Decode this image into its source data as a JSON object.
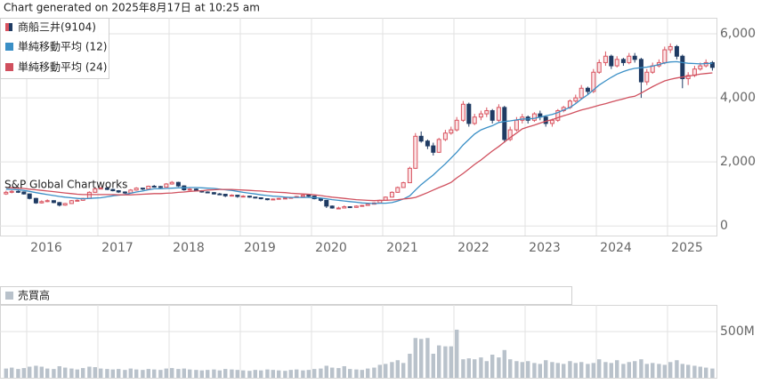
{
  "header": "Chart generated on 2025年8月17日 at 10:25 am",
  "watermark": "S&P Global Chartworks",
  "chart_data": [
    {
      "type": "candlestick",
      "name": "商船三井(9104)",
      "up_color": "#d9535f",
      "up_fill": "#fbe3e5",
      "down_color": "#1f3b63",
      "xlim": [
        2015.625,
        2025.6875
      ],
      "xticks": [
        2016,
        2017,
        2018,
        2019,
        2020,
        2021,
        2022,
        2023,
        2024,
        2025
      ],
      "ylim": [
        -300,
        6500
      ],
      "yticks": [
        0,
        {
          "value": 2000,
          "label": "2,000"
        },
        {
          "value": 4000,
          "label": "4,000"
        },
        {
          "value": 6000,
          "label": "6,000"
        }
      ],
      "grid": true,
      "x": [
        2015.71,
        2015.79,
        2015.88,
        2015.96,
        2016.04,
        2016.13,
        2016.21,
        2016.29,
        2016.38,
        2016.46,
        2016.54,
        2016.63,
        2016.71,
        2016.79,
        2016.88,
        2016.96,
        2017.04,
        2017.13,
        2017.21,
        2017.29,
        2017.38,
        2017.46,
        2017.54,
        2017.63,
        2017.71,
        2017.79,
        2017.88,
        2017.96,
        2018.04,
        2018.13,
        2018.21,
        2018.29,
        2018.38,
        2018.46,
        2018.54,
        2018.63,
        2018.71,
        2018.79,
        2018.88,
        2018.96,
        2019.04,
        2019.13,
        2019.21,
        2019.29,
        2019.38,
        2019.46,
        2019.54,
        2019.63,
        2019.71,
        2019.79,
        2019.88,
        2019.96,
        2020.04,
        2020.13,
        2020.21,
        2020.29,
        2020.38,
        2020.46,
        2020.54,
        2020.63,
        2020.71,
        2020.79,
        2020.88,
        2020.96,
        2021.04,
        2021.13,
        2021.21,
        2021.29,
        2021.38,
        2021.46,
        2021.54,
        2021.63,
        2021.71,
        2021.79,
        2021.88,
        2021.96,
        2022.04,
        2022.13,
        2022.21,
        2022.29,
        2022.38,
        2022.46,
        2022.54,
        2022.63,
        2022.71,
        2022.79,
        2022.88,
        2022.96,
        2023.04,
        2023.13,
        2023.21,
        2023.29,
        2023.38,
        2023.46,
        2023.54,
        2023.63,
        2023.71,
        2023.79,
        2023.88,
        2023.96,
        2024.04,
        2024.13,
        2024.21,
        2024.29,
        2024.38,
        2024.46,
        2024.54,
        2024.63,
        2024.71,
        2024.79,
        2024.88,
        2024.96,
        2025.04,
        2025.13,
        2025.21,
        2025.29,
        2025.38,
        2025.46,
        2025.54,
        2025.63
      ],
      "open": [
        1000,
        1050,
        1080,
        1060,
        1000,
        860,
        720,
        760,
        790,
        730,
        650,
        700,
        790,
        800,
        860,
        1050,
        1160,
        1180,
        1140,
        1100,
        1060,
        1030,
        1120,
        1180,
        1150,
        1240,
        1230,
        1210,
        1310,
        1360,
        1250,
        1130,
        1150,
        1100,
        1060,
        1040,
        1000,
        990,
        940,
        960,
        920,
        930,
        900,
        880,
        850,
        820,
        840,
        860,
        870,
        890,
        920,
        960,
        930,
        850,
        800,
        620,
        560,
        560,
        600,
        580,
        620,
        640,
        680,
        720,
        800,
        900,
        1050,
        1200,
        1350,
        1800,
        2800,
        2650,
        2500,
        2300,
        2700,
        2900,
        3000,
        3300,
        3800,
        3200,
        3400,
        3500,
        3600,
        3300,
        3700,
        2700,
        3000,
        3300,
        3400,
        3300,
        3500,
        3400,
        3200,
        3300,
        3600,
        3700,
        3900,
        4000,
        4300,
        4200,
        4800,
        5100,
        5300,
        5000,
        5200,
        5100,
        5300,
        5200,
        4500,
        4800,
        5000,
        5100,
        5500,
        5600,
        5300,
        4600,
        4700,
        4900,
        5000,
        5100
      ],
      "high": [
        1100,
        1120,
        1110,
        1080,
        1010,
        880,
        800,
        830,
        800,
        750,
        720,
        810,
        830,
        880,
        1080,
        1200,
        1220,
        1190,
        1160,
        1120,
        1080,
        1150,
        1210,
        1190,
        1260,
        1280,
        1250,
        1340,
        1400,
        1380,
        1270,
        1180,
        1170,
        1120,
        1080,
        1060,
        1030,
        1000,
        990,
        970,
        960,
        940,
        910,
        890,
        860,
        860,
        880,
        890,
        910,
        940,
        980,
        970,
        940,
        860,
        810,
        640,
        600,
        640,
        610,
        640,
        660,
        700,
        740,
        820,
        920,
        1080,
        1230,
        1380,
        1850,
        2900,
        2950,
        2700,
        2600,
        2750,
        3000,
        3100,
        3400,
        3900,
        3850,
        3500,
        3600,
        3700,
        3650,
        3800,
        3750,
        3100,
        3400,
        3500,
        3450,
        3550,
        3600,
        3450,
        3350,
        3650,
        3750,
        3950,
        4100,
        4400,
        4350,
        4900,
        5200,
        5450,
        5350,
        5300,
        5250,
        5400,
        5400,
        5250,
        4900,
        5100,
        5200,
        5600,
        5700,
        5650,
        5350,
        4800,
        5000,
        5100,
        5200,
        5150
      ],
      "low": [
        970,
        1020,
        1030,
        980,
        830,
        690,
        700,
        740,
        710,
        610,
        630,
        690,
        770,
        790,
        850,
        1040,
        1150,
        1120,
        1080,
        1030,
        1000,
        1020,
        1100,
        1120,
        1140,
        1200,
        1180,
        1200,
        1290,
        1220,
        1100,
        1110,
        1080,
        1040,
        1020,
        980,
        970,
        900,
        920,
        880,
        900,
        880,
        860,
        830,
        800,
        810,
        830,
        840,
        860,
        880,
        910,
        910,
        830,
        760,
        560,
        540,
        540,
        550,
        560,
        570,
        600,
        630,
        670,
        710,
        790,
        890,
        1040,
        1190,
        1340,
        1780,
        2600,
        2400,
        2200,
        2280,
        2650,
        2850,
        2950,
        3250,
        3100,
        3150,
        3300,
        3400,
        3200,
        3250,
        2600,
        2650,
        2950,
        3200,
        3200,
        3250,
        3300,
        3100,
        3100,
        3250,
        3550,
        3650,
        3850,
        3950,
        4100,
        4150,
        4750,
        5000,
        4900,
        4950,
        5000,
        5050,
        5100,
        4000,
        4400,
        4750,
        4950,
        5050,
        5400,
        5200,
        4300,
        4400,
        4650,
        4850,
        4950,
        4850
      ],
      "close": [
        1050,
        1080,
        1060,
        1000,
        860,
        720,
        760,
        790,
        730,
        650,
        700,
        790,
        800,
        860,
        1050,
        1160,
        1180,
        1140,
        1100,
        1060,
        1030,
        1120,
        1180,
        1150,
        1240,
        1230,
        1210,
        1310,
        1360,
        1250,
        1130,
        1150,
        1100,
        1060,
        1040,
        1000,
        990,
        940,
        960,
        920,
        930,
        900,
        880,
        850,
        820,
        840,
        860,
        870,
        890,
        920,
        960,
        930,
        850,
        800,
        620,
        560,
        560,
        600,
        580,
        620,
        640,
        680,
        720,
        800,
        900,
        1050,
        1200,
        1350,
        1800,
        2800,
        2650,
        2500,
        2300,
        2700,
        2900,
        3000,
        3300,
        3800,
        3200,
        3400,
        3500,
        3600,
        3300,
        3700,
        2700,
        3000,
        3300,
        3400,
        3300,
        3500,
        3400,
        3200,
        3300,
        3600,
        3700,
        3900,
        4000,
        4300,
        4200,
        4800,
        5100,
        5300,
        5000,
        5200,
        5100,
        5300,
        5200,
        4500,
        4800,
        5000,
        5100,
        5500,
        5600,
        5300,
        4600,
        4700,
        4900,
        5000,
        5100,
        4950
      ],
      "series": [
        {
          "name": "単純移動平均 (12)",
          "color": "#3a8fc6",
          "values": [
            1150,
            1140,
            1130,
            1110,
            1080,
            1040,
            1010,
            980,
            950,
            920,
            900,
            880,
            860,
            850,
            860,
            870,
            880,
            910,
            940,
            960,
            980,
            1020,
            1060,
            1090,
            1130,
            1160,
            1160,
            1170,
            1180,
            1190,
            1190,
            1200,
            1200,
            1190,
            1180,
            1170,
            1150,
            1130,
            1110,
            1080,
            1050,
            1020,
            1000,
            970,
            950,
            930,
            920,
            900,
            890,
            890,
            890,
            890,
            880,
            870,
            850,
            820,
            800,
            780,
            760,
            740,
            720,
            710,
            700,
            710,
            710,
            730,
            780,
            840,
            940,
            1120,
            1290,
            1450,
            1590,
            1760,
            1940,
            2120,
            2300,
            2530,
            2700,
            2870,
            3000,
            3070,
            3130,
            3230,
            3260,
            3280,
            3310,
            3340,
            3340,
            3360,
            3400,
            3440,
            3480,
            3540,
            3620,
            3700,
            3820,
            3960,
            4100,
            4250,
            4400,
            4530,
            4640,
            4740,
            4820,
            4880,
            4920,
            4940,
            4960,
            4990,
            5040,
            5090,
            5120,
            5130,
            5100,
            5080,
            5070,
            5060,
            5070,
            5080
          ]
        },
        {
          "name": "単純移動平均 (24)",
          "color": "#d0505e",
          "values": [
            1200,
            1190,
            1180,
            1170,
            1150,
            1130,
            1110,
            1090,
            1070,
            1050,
            1030,
            1010,
            990,
            980,
            980,
            980,
            980,
            980,
            980,
            970,
            970,
            970,
            980,
            990,
            1000,
            1010,
            1010,
            1020,
            1030,
            1050,
            1060,
            1080,
            1090,
            1100,
            1120,
            1130,
            1140,
            1140,
            1140,
            1130,
            1120,
            1110,
            1100,
            1090,
            1070,
            1060,
            1050,
            1040,
            1020,
            1010,
            1000,
            990,
            970,
            950,
            920,
            900,
            880,
            860,
            840,
            820,
            810,
            800,
            790,
            800,
            800,
            810,
            820,
            840,
            860,
            890,
            960,
            1040,
            1120,
            1200,
            1280,
            1360,
            1500,
            1640,
            1780,
            1920,
            2060,
            2200,
            2340,
            2480,
            2620,
            2760,
            2900,
            3030,
            3090,
            3150,
            3210,
            3270,
            3320,
            3380,
            3440,
            3500,
            3560,
            3620,
            3670,
            3720,
            3770,
            3820,
            3870,
            3920,
            3970,
            4020,
            4050,
            4150,
            4250,
            4350,
            4450,
            4530,
            4580,
            4620,
            4650,
            4680,
            4710,
            4740,
            4760,
            4780
          ]
        }
      ]
    },
    {
      "type": "bar",
      "name": "売買高",
      "color": "#b9c2cb",
      "xlim": [
        2015.625,
        2025.6875
      ],
      "xticks": [
        2016,
        2017,
        2018,
        2019,
        2020,
        2021,
        2022,
        2023,
        2024,
        2025
      ],
      "ylim": [
        0,
        788
      ],
      "yticks": [
        {
          "value": 500,
          "label": "500M"
        }
      ],
      "grid": true,
      "x": [
        2015.71,
        2015.79,
        2015.88,
        2015.96,
        2016.04,
        2016.13,
        2016.21,
        2016.29,
        2016.38,
        2016.46,
        2016.54,
        2016.63,
        2016.71,
        2016.79,
        2016.88,
        2016.96,
        2017.04,
        2017.13,
        2017.21,
        2017.29,
        2017.38,
        2017.46,
        2017.54,
        2017.63,
        2017.71,
        2017.79,
        2017.88,
        2017.96,
        2018.04,
        2018.13,
        2018.21,
        2018.29,
        2018.38,
        2018.46,
        2018.54,
        2018.63,
        2018.71,
        2018.79,
        2018.88,
        2018.96,
        2019.04,
        2019.13,
        2019.21,
        2019.29,
        2019.38,
        2019.46,
        2019.54,
        2019.63,
        2019.71,
        2019.79,
        2019.88,
        2019.96,
        2020.04,
        2020.13,
        2020.21,
        2020.29,
        2020.38,
        2020.46,
        2020.54,
        2020.63,
        2020.71,
        2020.79,
        2020.88,
        2020.96,
        2021.04,
        2021.13,
        2021.21,
        2021.29,
        2021.38,
        2021.46,
        2021.54,
        2021.63,
        2021.71,
        2021.79,
        2021.88,
        2021.96,
        2022.04,
        2022.13,
        2022.21,
        2022.29,
        2022.38,
        2022.46,
        2022.54,
        2022.63,
        2022.71,
        2022.79,
        2022.88,
        2022.96,
        2023.04,
        2023.13,
        2023.21,
        2023.29,
        2023.38,
        2023.46,
        2023.54,
        2023.63,
        2023.71,
        2023.79,
        2023.88,
        2023.96,
        2024.04,
        2024.13,
        2024.21,
        2024.29,
        2024.38,
        2024.46,
        2024.54,
        2024.63,
        2024.71,
        2024.79,
        2024.88,
        2024.96,
        2025.04,
        2025.13,
        2025.21,
        2025.29,
        2025.38,
        2025.46,
        2025.54,
        2025.63
      ],
      "values": [
        100,
        110,
        95,
        105,
        120,
        130,
        120,
        100,
        95,
        125,
        110,
        100,
        90,
        105,
        120,
        115,
        100,
        95,
        90,
        95,
        85,
        100,
        90,
        85,
        95,
        90,
        85,
        100,
        105,
        95,
        100,
        90,
        85,
        80,
        85,
        90,
        80,
        95,
        90,
        85,
        80,
        75,
        85,
        80,
        90,
        85,
        80,
        75,
        85,
        90,
        80,
        85,
        95,
        100,
        130,
        110,
        105,
        125,
        95,
        90,
        85,
        100,
        110,
        140,
        150,
        170,
        190,
        160,
        260,
        430,
        420,
        430,
        260,
        350,
        340,
        340,
        520,
        200,
        210,
        200,
        220,
        180,
        250,
        220,
        300,
        200,
        180,
        170,
        180,
        160,
        150,
        190,
        170,
        160,
        150,
        180,
        160,
        170,
        150,
        160,
        200,
        170,
        160,
        190,
        150,
        170,
        180,
        200,
        150,
        160,
        150,
        140,
        170,
        190,
        150,
        140,
        130,
        120,
        110,
        100
      ]
    }
  ]
}
